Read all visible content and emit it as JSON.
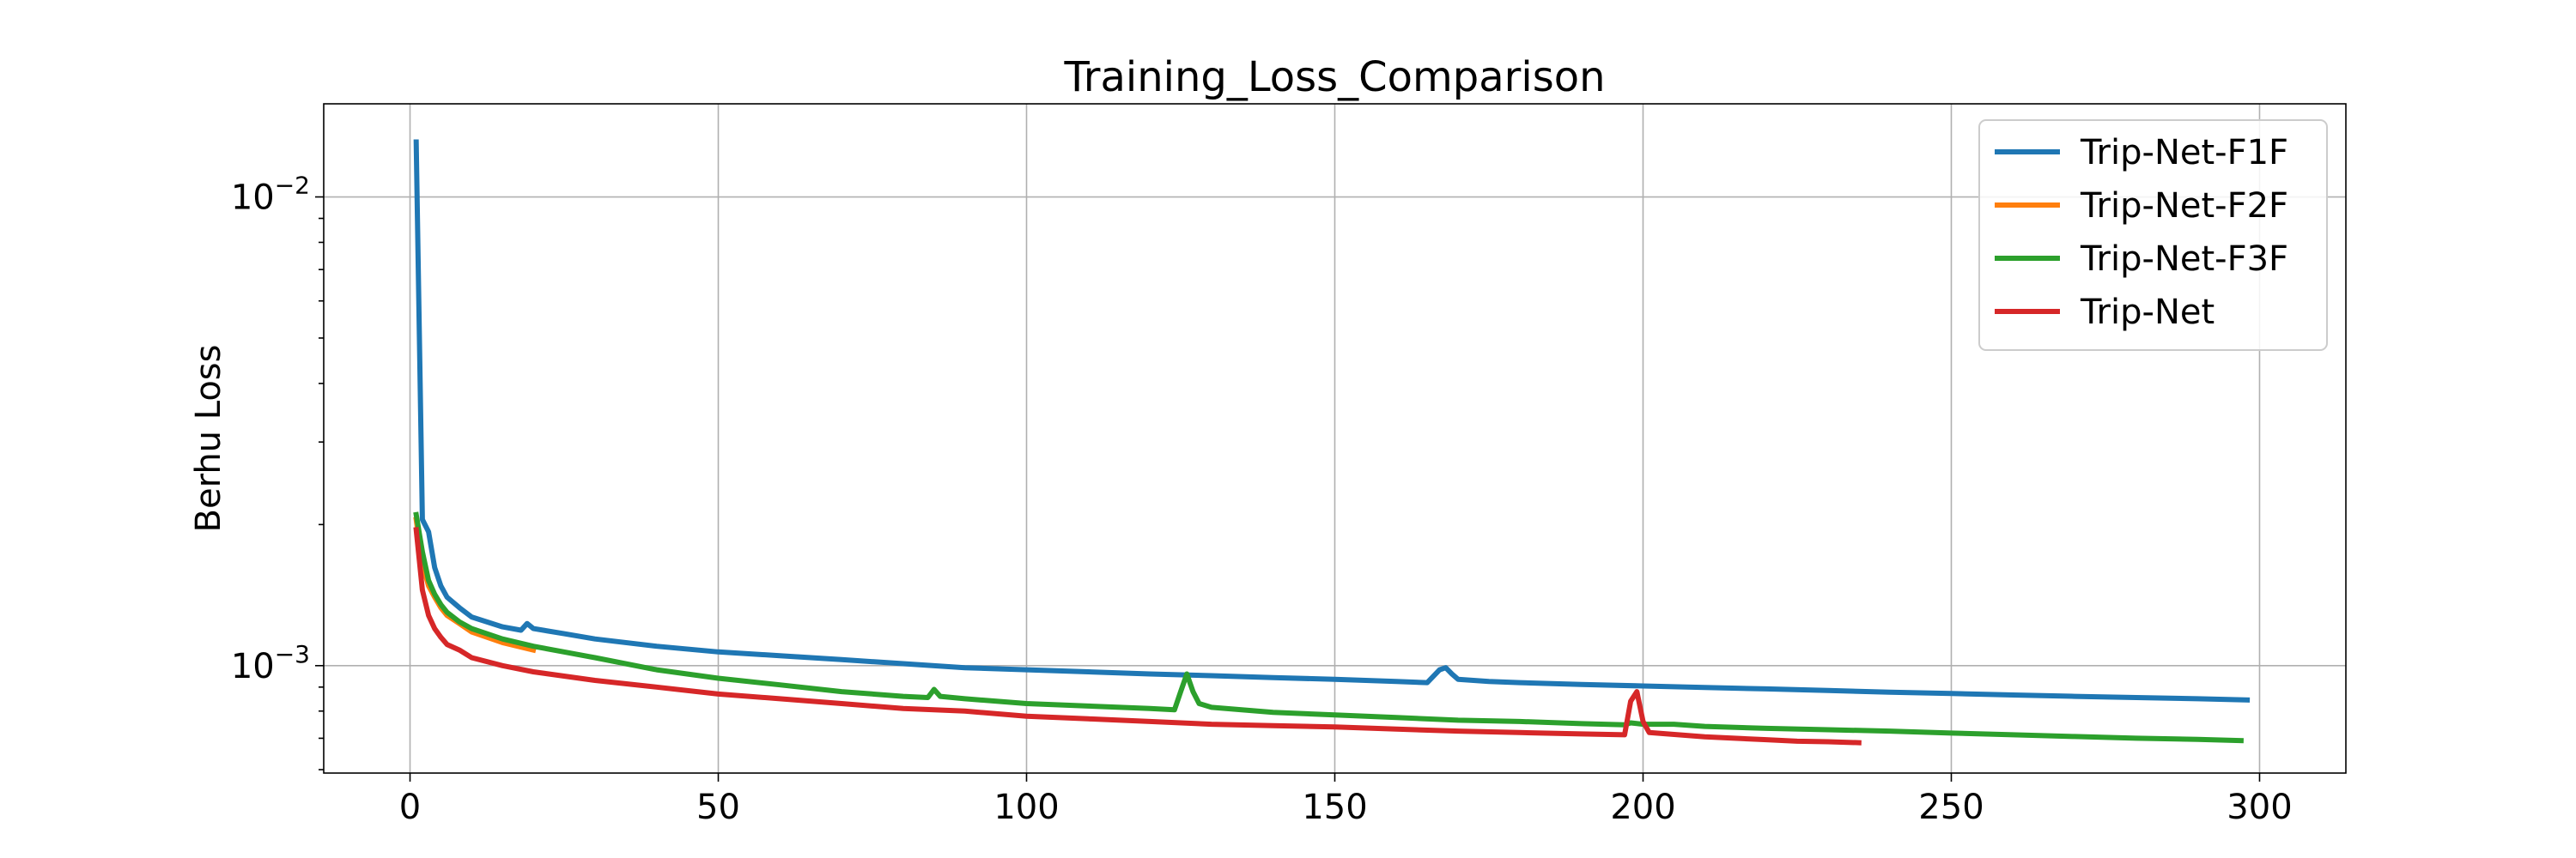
{
  "chart_data": {
    "type": "line",
    "title": "Training_Loss_Comparison",
    "xlabel": "",
    "ylabel": "Berhu Loss",
    "yscale": "log",
    "xlim": [
      -14,
      314
    ],
    "ylim": [
      0.00059,
      0.0158
    ],
    "xticks": [
      0,
      50,
      100,
      150,
      200,
      250,
      300
    ],
    "yticks": [
      {
        "value": 0.01,
        "base": "10",
        "exp": "−2"
      },
      {
        "value": 0.001,
        "base": "10",
        "exp": "−3"
      }
    ],
    "grid": true,
    "legend_position": "top-right",
    "series": [
      {
        "name": "Trip-Net-F1F",
        "color": "#1f77b4",
        "points": [
          [
            1,
            0.0131
          ],
          [
            2,
            0.00205
          ],
          [
            3,
            0.00193
          ],
          [
            4,
            0.00162
          ],
          [
            5,
            0.00148
          ],
          [
            6,
            0.0014
          ],
          [
            8,
            0.00133
          ],
          [
            10,
            0.00127
          ],
          [
            15,
            0.00121
          ],
          [
            18,
            0.00119
          ],
          [
            19,
            0.00123
          ],
          [
            20,
            0.0012
          ],
          [
            25,
            0.00117
          ],
          [
            30,
            0.00114
          ],
          [
            40,
            0.0011
          ],
          [
            50,
            0.00107
          ],
          [
            60,
            0.00105
          ],
          [
            70,
            0.00103
          ],
          [
            80,
            0.00101
          ],
          [
            90,
            0.00099
          ],
          [
            100,
            0.00098
          ],
          [
            110,
            0.00097
          ],
          [
            120,
            0.00096
          ],
          [
            130,
            0.000952
          ],
          [
            140,
            0.000943
          ],
          [
            150,
            0.000935
          ],
          [
            160,
            0.000925
          ],
          [
            165,
            0.00092
          ],
          [
            167,
            0.00098
          ],
          [
            168,
            0.00099
          ],
          [
            169,
            0.00096
          ],
          [
            170,
            0.000935
          ],
          [
            175,
            0.000925
          ],
          [
            180,
            0.00092
          ],
          [
            190,
            0.000912
          ],
          [
            200,
            0.000905
          ],
          [
            210,
            0.000898
          ],
          [
            220,
            0.000892
          ],
          [
            230,
            0.000885
          ],
          [
            240,
            0.000878
          ],
          [
            250,
            0.000872
          ],
          [
            260,
            0.000866
          ],
          [
            270,
            0.00086
          ],
          [
            280,
            0.000855
          ],
          [
            290,
            0.00085
          ],
          [
            298,
            0.000845
          ]
        ]
      },
      {
        "name": "Trip-Net-F2F",
        "color": "#ff7f0e",
        "points": [
          [
            1,
            0.00205
          ],
          [
            2,
            0.00165
          ],
          [
            3,
            0.00148
          ],
          [
            4,
            0.0014
          ],
          [
            5,
            0.00133
          ],
          [
            6,
            0.00128
          ],
          [
            8,
            0.00123
          ],
          [
            10,
            0.00118
          ],
          [
            15,
            0.00112
          ],
          [
            20,
            0.00108
          ]
        ]
      },
      {
        "name": "Trip-Net-F3F",
        "color": "#2ca02c",
        "points": [
          [
            1,
            0.0021
          ],
          [
            2,
            0.00175
          ],
          [
            3,
            0.00152
          ],
          [
            4,
            0.00142
          ],
          [
            5,
            0.00135
          ],
          [
            6,
            0.0013
          ],
          [
            8,
            0.00124
          ],
          [
            10,
            0.0012
          ],
          [
            15,
            0.00114
          ],
          [
            20,
            0.0011
          ],
          [
            30,
            0.00104
          ],
          [
            40,
            0.00098
          ],
          [
            50,
            0.00094
          ],
          [
            60,
            0.00091
          ],
          [
            70,
            0.00088
          ],
          [
            80,
            0.00086
          ],
          [
            84,
            0.000855
          ],
          [
            85,
            0.00089
          ],
          [
            86,
            0.00086
          ],
          [
            90,
            0.00085
          ],
          [
            100,
            0.00083
          ],
          [
            110,
            0.00082
          ],
          [
            120,
            0.00081
          ],
          [
            124,
            0.000805
          ],
          [
            125,
            0.00088
          ],
          [
            126,
            0.00096
          ],
          [
            127,
            0.00088
          ],
          [
            128,
            0.00083
          ],
          [
            130,
            0.000815
          ],
          [
            140,
            0.000795
          ],
          [
            150,
            0.000785
          ],
          [
            160,
            0.000775
          ],
          [
            170,
            0.000765
          ],
          [
            180,
            0.00076
          ],
          [
            190,
            0.000752
          ],
          [
            197,
            0.000748
          ],
          [
            198,
            0.000755
          ],
          [
            200,
            0.00075
          ],
          [
            205,
            0.00075
          ],
          [
            210,
            0.000742
          ],
          [
            220,
            0.000735
          ],
          [
            230,
            0.00073
          ],
          [
            240,
            0.000725
          ],
          [
            250,
            0.000718
          ],
          [
            260,
            0.000712
          ],
          [
            270,
            0.000706
          ],
          [
            280,
            0.0007
          ],
          [
            290,
            0.000696
          ],
          [
            297,
            0.000692
          ]
        ]
      },
      {
        "name": "Trip-Net",
        "color": "#d62728",
        "points": [
          [
            1,
            0.00195
          ],
          [
            2,
            0.00145
          ],
          [
            3,
            0.00128
          ],
          [
            4,
            0.0012
          ],
          [
            5,
            0.00115
          ],
          [
            6,
            0.00111
          ],
          [
            8,
            0.00108
          ],
          [
            10,
            0.00104
          ],
          [
            15,
            0.001
          ],
          [
            20,
            0.00097
          ],
          [
            30,
            0.00093
          ],
          [
            40,
            0.0009
          ],
          [
            50,
            0.00087
          ],
          [
            60,
            0.00085
          ],
          [
            70,
            0.00083
          ],
          [
            80,
            0.00081
          ],
          [
            90,
            0.0008
          ],
          [
            100,
            0.00078
          ],
          [
            110,
            0.00077
          ],
          [
            120,
            0.00076
          ],
          [
            130,
            0.00075
          ],
          [
            140,
            0.000745
          ],
          [
            150,
            0.00074
          ],
          [
            160,
            0.000732
          ],
          [
            170,
            0.000725
          ],
          [
            180,
            0.00072
          ],
          [
            190,
            0.000715
          ],
          [
            197,
            0.000712
          ],
          [
            198,
            0.00084
          ],
          [
            199,
            0.00088
          ],
          [
            200,
            0.00076
          ],
          [
            201,
            0.00072
          ],
          [
            210,
            0.000705
          ],
          [
            220,
            0.000695
          ],
          [
            225,
            0.00069
          ],
          [
            230,
            0.000688
          ],
          [
            235,
            0.000685
          ]
        ]
      }
    ]
  }
}
